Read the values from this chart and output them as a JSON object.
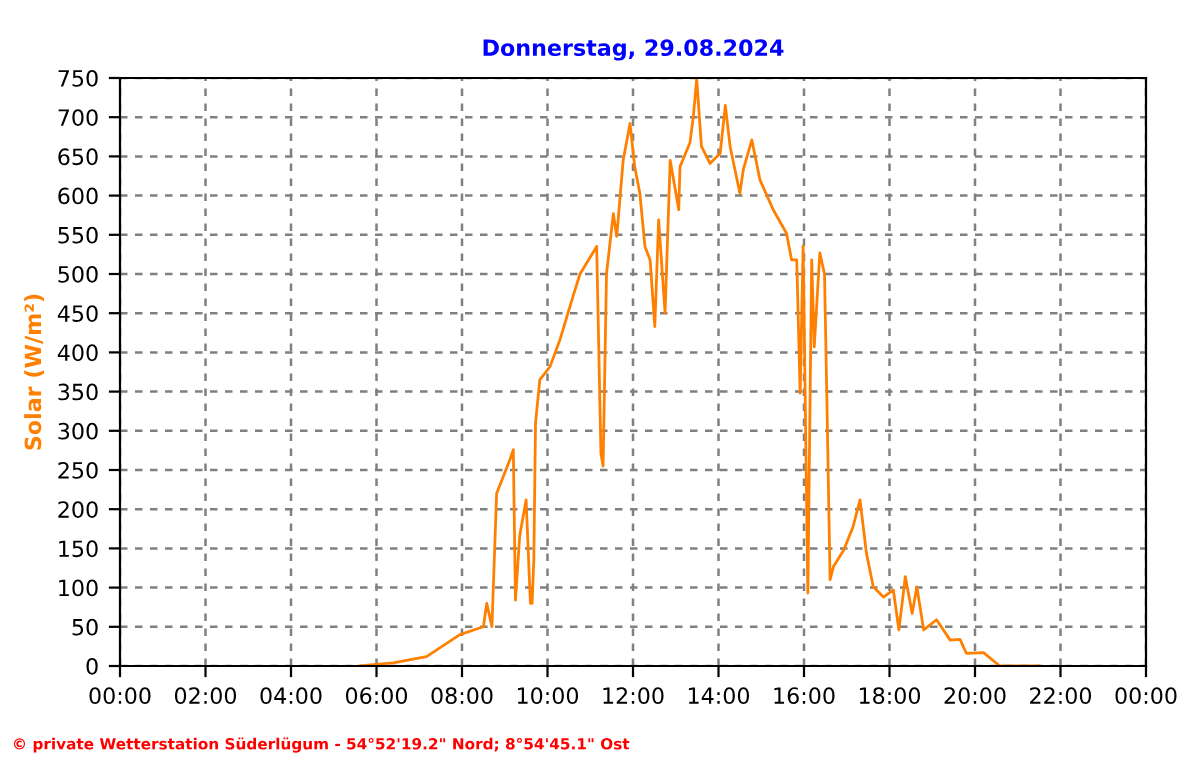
{
  "chart_data": {
    "type": "line",
    "title": "Donnerstag, 29.08.2024",
    "ylabel": "Solar (W/m²)",
    "annotations": [
      "© private Wetterstation Süderlügum - 54°52'19.2\" Nord; 8°54'45.1\" Ost"
    ],
    "series": [
      {
        "color": "#ff8000",
        "x": [
          5.6,
          6.39,
          7.17,
          7.95,
          8.5,
          8.58,
          8.7,
          8.81,
          9.12,
          9.2,
          9.25,
          9.35,
          9.5,
          9.6,
          9.64,
          9.68,
          9.72,
          9.82,
          10.06,
          10.29,
          10.6,
          10.76,
          11.15,
          11.25,
          11.3,
          11.38,
          11.54,
          11.62,
          11.77,
          11.93,
          12.04,
          12.16,
          12.28,
          12.4,
          12.51,
          12.6,
          12.75,
          12.87,
          13.07,
          13.1,
          13.33,
          13.41,
          13.49,
          13.6,
          13.8,
          14.04,
          14.16,
          14.27,
          14.5,
          14.58,
          14.78,
          14.97,
          15.28,
          15.59,
          15.71,
          15.83,
          15.91,
          15.98,
          16.09,
          16.18,
          16.24,
          16.37,
          16.48,
          16.53,
          16.61,
          16.69,
          16.93,
          17.15,
          17.31,
          17.46,
          17.62,
          17.86,
          18.09,
          18.22,
          18.37,
          18.53,
          18.64,
          18.8,
          19.1,
          19.42,
          19.65,
          19.8,
          20.2,
          20.58,
          21.5
        ],
        "values": [
          0,
          4,
          12,
          40,
          50,
          80,
          50,
          220,
          263,
          276,
          84,
          166,
          212,
          80,
          80,
          135,
          310,
          365,
          382,
          416,
          472,
          500,
          535,
          271,
          255,
          500,
          577,
          548,
          645,
          692,
          637,
          603,
          535,
          518,
          433,
          569,
          450,
          645,
          582,
          637,
          667,
          700,
          749,
          663,
          641,
          654,
          715,
          663,
          603,
          633,
          671,
          620,
          582,
          552,
          518,
          518,
          348,
          536,
          93,
          518,
          407,
          527,
          500,
          356,
          110,
          127,
          148,
          178,
          212,
          144,
          101,
          88,
          97,
          46,
          114,
          67,
          101,
          46,
          59,
          33,
          34,
          16,
          17,
          0,
          0
        ]
      }
    ],
    "xlim": [
      0,
      24
    ],
    "xticks": [
      {
        "value": 0,
        "label": "00:00"
      },
      {
        "value": 2,
        "label": "02:00"
      },
      {
        "value": 4,
        "label": "04:00"
      },
      {
        "value": 6,
        "label": "06:00"
      },
      {
        "value": 8,
        "label": "08:00"
      },
      {
        "value": 10,
        "label": "10:00"
      },
      {
        "value": 12,
        "label": "12:00"
      },
      {
        "value": 14,
        "label": "14:00"
      },
      {
        "value": 16,
        "label": "16:00"
      },
      {
        "value": 18,
        "label": "18:00"
      },
      {
        "value": 20,
        "label": "20:00"
      },
      {
        "value": 22,
        "label": "22:00"
      },
      {
        "value": 24,
        "label": "00:00"
      }
    ],
    "ylim": [
      0,
      750
    ],
    "yticks": [
      0,
      50,
      100,
      150,
      200,
      250,
      300,
      350,
      400,
      450,
      500,
      550,
      600,
      650,
      700,
      750
    ],
    "grid": true,
    "marker": "none",
    "line_style": "solid"
  }
}
